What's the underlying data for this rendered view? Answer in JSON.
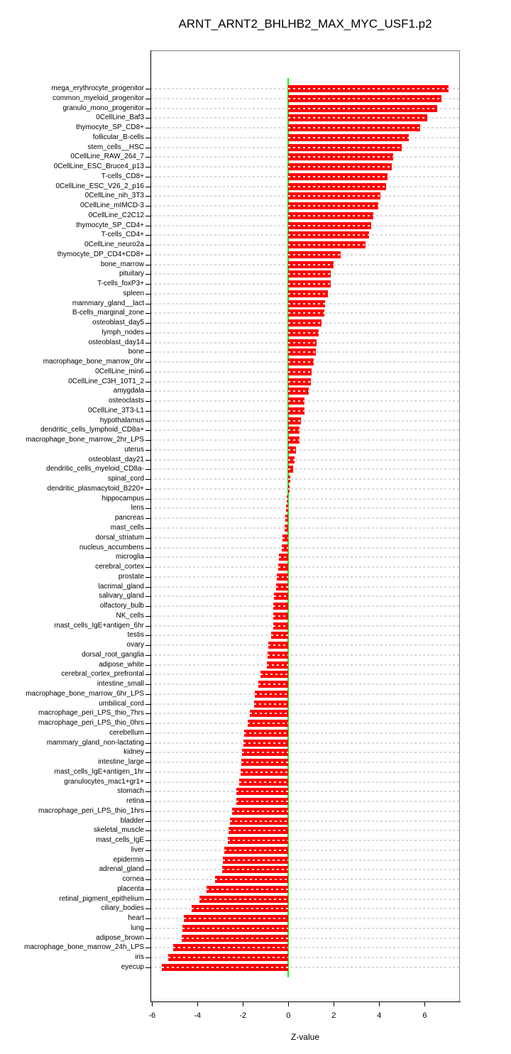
{
  "chart_data": {
    "type": "bar",
    "orientation": "horizontal",
    "title": "ARNT_ARNT2_BHLHB2_MAX_MYC_USF1.p2",
    "xlabel": "Z-value",
    "xlim": [
      -6.07,
      7.55
    ],
    "x_ticks": [
      -6,
      -4,
      -2,
      0,
      2,
      4,
      6
    ],
    "grid": true,
    "legend": false,
    "zero_reference_line": 0,
    "colors": {
      "bar": "#FF0000",
      "zero_line": "#00FF00",
      "grid": "#D9D9D9",
      "box_border": "#808080",
      "axis": "#000000",
      "text": "#000000"
    },
    "categories": [
      "mega_erythrocyte_progenitor",
      "common_myeloid_progenitor",
      "granulo_mono_progenitor",
      "0CellLine_Baf3",
      "thymocyte_SP_CD8+",
      "follicular_B-cells",
      "stem_cells__HSC",
      "0CellLine_RAW_264_7",
      "0CellLine_ESC_Bruce4_p13",
      "T-cells_CD8+",
      "0CellLine_ESC_V26_2_p16",
      "0CellLine_nih_3T3",
      "0CellLine_mIMCD-3",
      "0CellLine_C2C12",
      "thymocyte_SP_CD4+",
      "T-cells_CD4+",
      "0CellLine_neuro2a",
      "thymocyte_DP_CD4+CD8+",
      "bone_marrow",
      "pituitary",
      "T-cells_foxP3+",
      "spleen",
      "mammary_gland__lact",
      "B-cells_marginal_zone",
      "osteoblast_day5",
      "lymph_nodes",
      "osteoblast_day14",
      "bone",
      "macrophage_bone_marrow_0hr",
      "0CellLine_min6",
      "0CellLine_C3H_10T1_2",
      "amygdala",
      "osteoclasts",
      "0CellLine_3T3-L1",
      "hypothalamus",
      "dendritic_cells_lymphoid_CD8a+",
      "macrophage_bone_marrow_2hr_LPS",
      "uterus",
      "osteoblast_day21",
      "dendritic_cells_myeloid_CD8a-",
      "spinal_cord",
      "dendritic_plasmacytoid_B220+",
      "hippocampus",
      "lens",
      "pancreas",
      "mast_cells",
      "dorsal_striatum",
      "nucleus_accumbens",
      "microglia",
      "cerebral_cortex",
      "prostate",
      "lacrimal_gland",
      "salivary_gland",
      "olfactory_bulb",
      "NK_cells",
      "mast_cells_IgE+antigen_6hr",
      "testis",
      "ovary",
      "dorsal_root_ganglia",
      "adipose_white",
      "cerebral_cortex_prefrontal",
      "intestine_small",
      "macrophage_bone_marrow_6hr_LPS",
      "umbilical_cord",
      "macrophage_peri_LPS_thio_7hrs",
      "macrophage_peri_LPS_thio_0hrs",
      "cerebellum",
      "mammary_gland_non-lactating",
      "kidney",
      "intestine_large",
      "mast_cells_IgE+antigen_1hr",
      "granulocytes_mac1+gr1+",
      "stomach",
      "retina",
      "macrophage_peri_LPS_thio_1hrs",
      "bladder",
      "skeletal_muscle",
      "mast_cells_IgE",
      "liver",
      "epidermis",
      "adrenal_gland",
      "cornea",
      "placenta",
      "retinal_pigment_epithelium",
      "ciliary_bodies",
      "heart",
      "lung",
      "adipose_brown",
      "macrophage_bone_marrow_24h_LPS",
      "iris",
      "eyecup"
    ],
    "values": [
      7.05,
      6.75,
      6.55,
      6.1,
      5.8,
      5.3,
      5.0,
      4.6,
      4.55,
      4.35,
      4.3,
      4.05,
      3.95,
      3.75,
      3.65,
      3.55,
      3.4,
      2.3,
      2.0,
      1.85,
      1.85,
      1.75,
      1.6,
      1.58,
      1.45,
      1.33,
      1.23,
      1.2,
      1.1,
      1.03,
      1.0,
      0.9,
      0.7,
      0.7,
      0.55,
      0.48,
      0.48,
      0.32,
      0.27,
      0.2,
      0.08,
      0.05,
      -0.08,
      -0.11,
      -0.14,
      -0.16,
      -0.27,
      -0.29,
      -0.42,
      -0.46,
      -0.51,
      -0.55,
      -0.62,
      -0.67,
      -0.67,
      -0.68,
      -0.76,
      -0.89,
      -0.93,
      -0.96,
      -1.23,
      -1.33,
      -1.48,
      -1.51,
      -1.7,
      -1.78,
      -1.95,
      -1.98,
      -2.05,
      -2.07,
      -2.1,
      -2.15,
      -2.29,
      -2.3,
      -2.48,
      -2.57,
      -2.64,
      -2.67,
      -2.82,
      -2.89,
      -2.92,
      -3.23,
      -3.6,
      -3.92,
      -4.26,
      -4.6,
      -4.66,
      -4.7,
      -5.07,
      -5.29,
      -5.57
    ]
  }
}
